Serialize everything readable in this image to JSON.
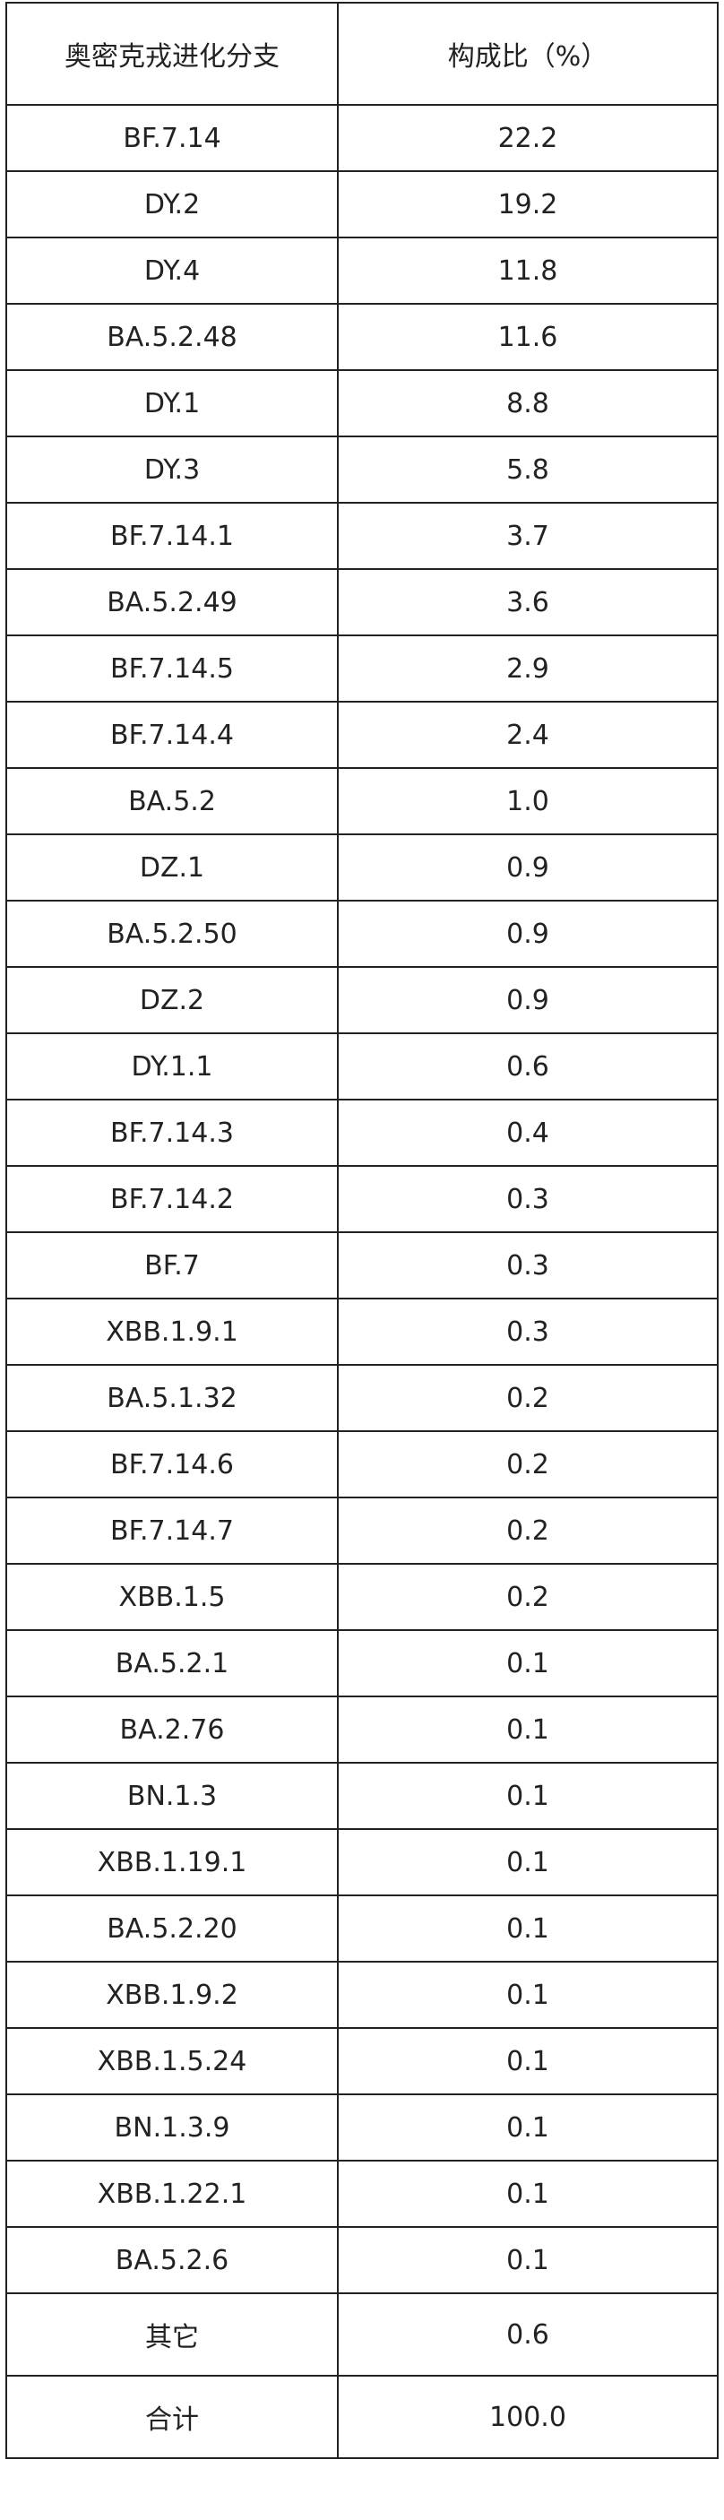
{
  "table": {
    "header": [
      "奥密克戎进化分支",
      "构成比（%）"
    ],
    "rows": [
      [
        "BF.7.14",
        "22.2"
      ],
      [
        "DY.2",
        "19.2"
      ],
      [
        "DY.4",
        "11.8"
      ],
      [
        "BA.5.2.48",
        "11.6"
      ],
      [
        "DY.1",
        "8.8"
      ],
      [
        "DY.3",
        "5.8"
      ],
      [
        "BF.7.14.1",
        "3.7"
      ],
      [
        "BA.5.2.49",
        "3.6"
      ],
      [
        "BF.7.14.5",
        "2.9"
      ],
      [
        "BF.7.14.4",
        "2.4"
      ],
      [
        "BA.5.2",
        "1.0"
      ],
      [
        "DZ.1",
        "0.9"
      ],
      [
        "BA.5.2.50",
        "0.9"
      ],
      [
        "DZ.2",
        "0.9"
      ],
      [
        "DY.1.1",
        "0.6"
      ],
      [
        "BF.7.14.3",
        "0.4"
      ],
      [
        "BF.7.14.2",
        "0.3"
      ],
      [
        "BF.7",
        "0.3"
      ],
      [
        "XBB.1.9.1",
        "0.3"
      ],
      [
        "BA.5.1.32",
        "0.2"
      ],
      [
        "BF.7.14.6",
        "0.2"
      ],
      [
        "BF.7.14.7",
        "0.2"
      ],
      [
        "XBB.1.5",
        "0.2"
      ],
      [
        "BA.5.2.1",
        "0.1"
      ],
      [
        "BA.2.76",
        "0.1"
      ],
      [
        "BN.1.3",
        "0.1"
      ],
      [
        "XBB.1.19.1",
        "0.1"
      ],
      [
        "BA.5.2.20",
        "0.1"
      ],
      [
        "XBB.1.9.2",
        "0.1"
      ],
      [
        "XBB.1.5.24",
        "0.1"
      ],
      [
        "BN.1.3.9",
        "0.1"
      ],
      [
        "XBB.1.22.1",
        "0.1"
      ],
      [
        "BA.5.2.6",
        "0.1"
      ]
    ],
    "footer_rows": [
      [
        "其它",
        "0.6"
      ],
      [
        "合计",
        "100.0"
      ]
    ]
  }
}
